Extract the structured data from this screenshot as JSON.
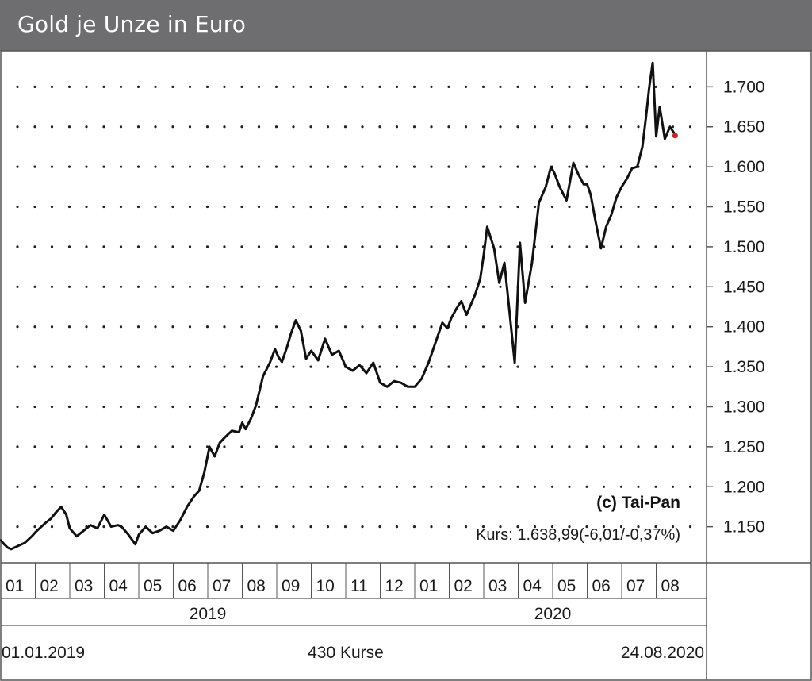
{
  "title": "Gold je Unze in Euro",
  "copyright": "(c) Tai-Pan",
  "kurs_line": "Kurs: 1.638,99(-6,01/-0,37%)",
  "footer": {
    "start_date": "01.01.2019",
    "count": "430 Kurse",
    "end_date": "24.08.2020"
  },
  "colors": {
    "header": "#6e6e70",
    "line": "#111111",
    "last_point": "#cc2222",
    "grid_dot": "#222222"
  },
  "chart_data": {
    "type": "line",
    "title": "Gold je Unze in Euro",
    "xlabel": "",
    "ylabel": "",
    "grid": true,
    "ylim": [
      1105,
      1745
    ],
    "y_ticks": [
      1150,
      1200,
      1250,
      1300,
      1350,
      1400,
      1450,
      1500,
      1550,
      1600,
      1650,
      1700
    ],
    "y_tick_labels": [
      "1.150",
      "1.200",
      "1.250",
      "1.300",
      "1.350",
      "1.400",
      "1.450",
      "1.500",
      "1.550",
      "1.600",
      "1.650",
      "1.700"
    ],
    "months": [
      "01",
      "02",
      "03",
      "04",
      "05",
      "06",
      "07",
      "08",
      "09",
      "10",
      "11",
      "12",
      "01",
      "02",
      "03",
      "04",
      "05",
      "06",
      "07",
      "08"
    ],
    "years": [
      {
        "label": "2019",
        "month_span": [
          0,
          12
        ]
      },
      {
        "label": "2020",
        "month_span": [
          12,
          20
        ]
      }
    ],
    "x_range": [
      0,
      19.8
    ],
    "series": [
      {
        "x": [
          0,
          0.1,
          0.2,
          0.3,
          0.5,
          0.7,
          0.9,
          1.0,
          1.15,
          1.3,
          1.45,
          1.6,
          1.75,
          1.9,
          2.0,
          2.2,
          2.4,
          2.6,
          2.8,
          3.0,
          3.2,
          3.4,
          3.5,
          3.7,
          3.9,
          4.0,
          4.2,
          4.4,
          4.6,
          4.8,
          5.0,
          5.2,
          5.4,
          5.6,
          5.75,
          5.9,
          6.05,
          6.2,
          6.35,
          6.5,
          6.7,
          6.9,
          7.0,
          7.1,
          7.25,
          7.4,
          7.6,
          7.8,
          7.95,
          8.05,
          8.15,
          8.3,
          8.4,
          8.55,
          8.7,
          8.85,
          9.0,
          9.2,
          9.4,
          9.6,
          9.8,
          10.0,
          10.2,
          10.4,
          10.6,
          10.8,
          11.0,
          11.2,
          11.4,
          11.6,
          11.8,
          12.0,
          12.2,
          12.4,
          12.6,
          12.8,
          12.95,
          13.05,
          13.2,
          13.35,
          13.5,
          13.6,
          13.75,
          13.9,
          14.0,
          14.1,
          14.3,
          14.45,
          14.6,
          14.75,
          14.9,
          15.05,
          15.2,
          15.4,
          15.6,
          15.8,
          15.95,
          16.05,
          16.2,
          16.4,
          16.6,
          16.75,
          16.9,
          17.0,
          17.1,
          17.25,
          17.4,
          17.55,
          17.7,
          17.85,
          18.0,
          18.15,
          18.3,
          18.45,
          18.6,
          18.7,
          18.8,
          18.9,
          19.0,
          19.1,
          19.25,
          19.4,
          19.55
        ],
        "y": [
          1133,
          1128,
          1124,
          1122,
          1126,
          1130,
          1138,
          1143,
          1149,
          1155,
          1160,
          1168,
          1175,
          1165,
          1148,
          1138,
          1145,
          1152,
          1148,
          1165,
          1150,
          1152,
          1150,
          1140,
          1128,
          1140,
          1150,
          1142,
          1145,
          1150,
          1145,
          1158,
          1175,
          1188,
          1195,
          1218,
          1250,
          1238,
          1255,
          1262,
          1270,
          1268,
          1280,
          1272,
          1285,
          1302,
          1338,
          1355,
          1372,
          1362,
          1356,
          1375,
          1390,
          1408,
          1395,
          1360,
          1370,
          1358,
          1385,
          1365,
          1370,
          1350,
          1345,
          1352,
          1342,
          1355,
          1330,
          1325,
          1332,
          1330,
          1325,
          1325,
          1335,
          1355,
          1380,
          1405,
          1398,
          1410,
          1422,
          1432,
          1415,
          1425,
          1440,
          1460,
          1490,
          1525,
          1498,
          1455,
          1480,
          1418,
          1355,
          1505,
          1430,
          1480,
          1555,
          1575,
          1600,
          1592,
          1575,
          1558,
          1605,
          1590,
          1578,
          1578,
          1565,
          1530,
          1498,
          1525,
          1540,
          1562,
          1575,
          1585,
          1598,
          1600,
          1625,
          1660,
          1700,
          1730,
          1638,
          1675,
          1635,
          1650,
          1640
        ],
        "last_point": {
          "x": 19.55,
          "y": 1639
        }
      }
    ]
  }
}
